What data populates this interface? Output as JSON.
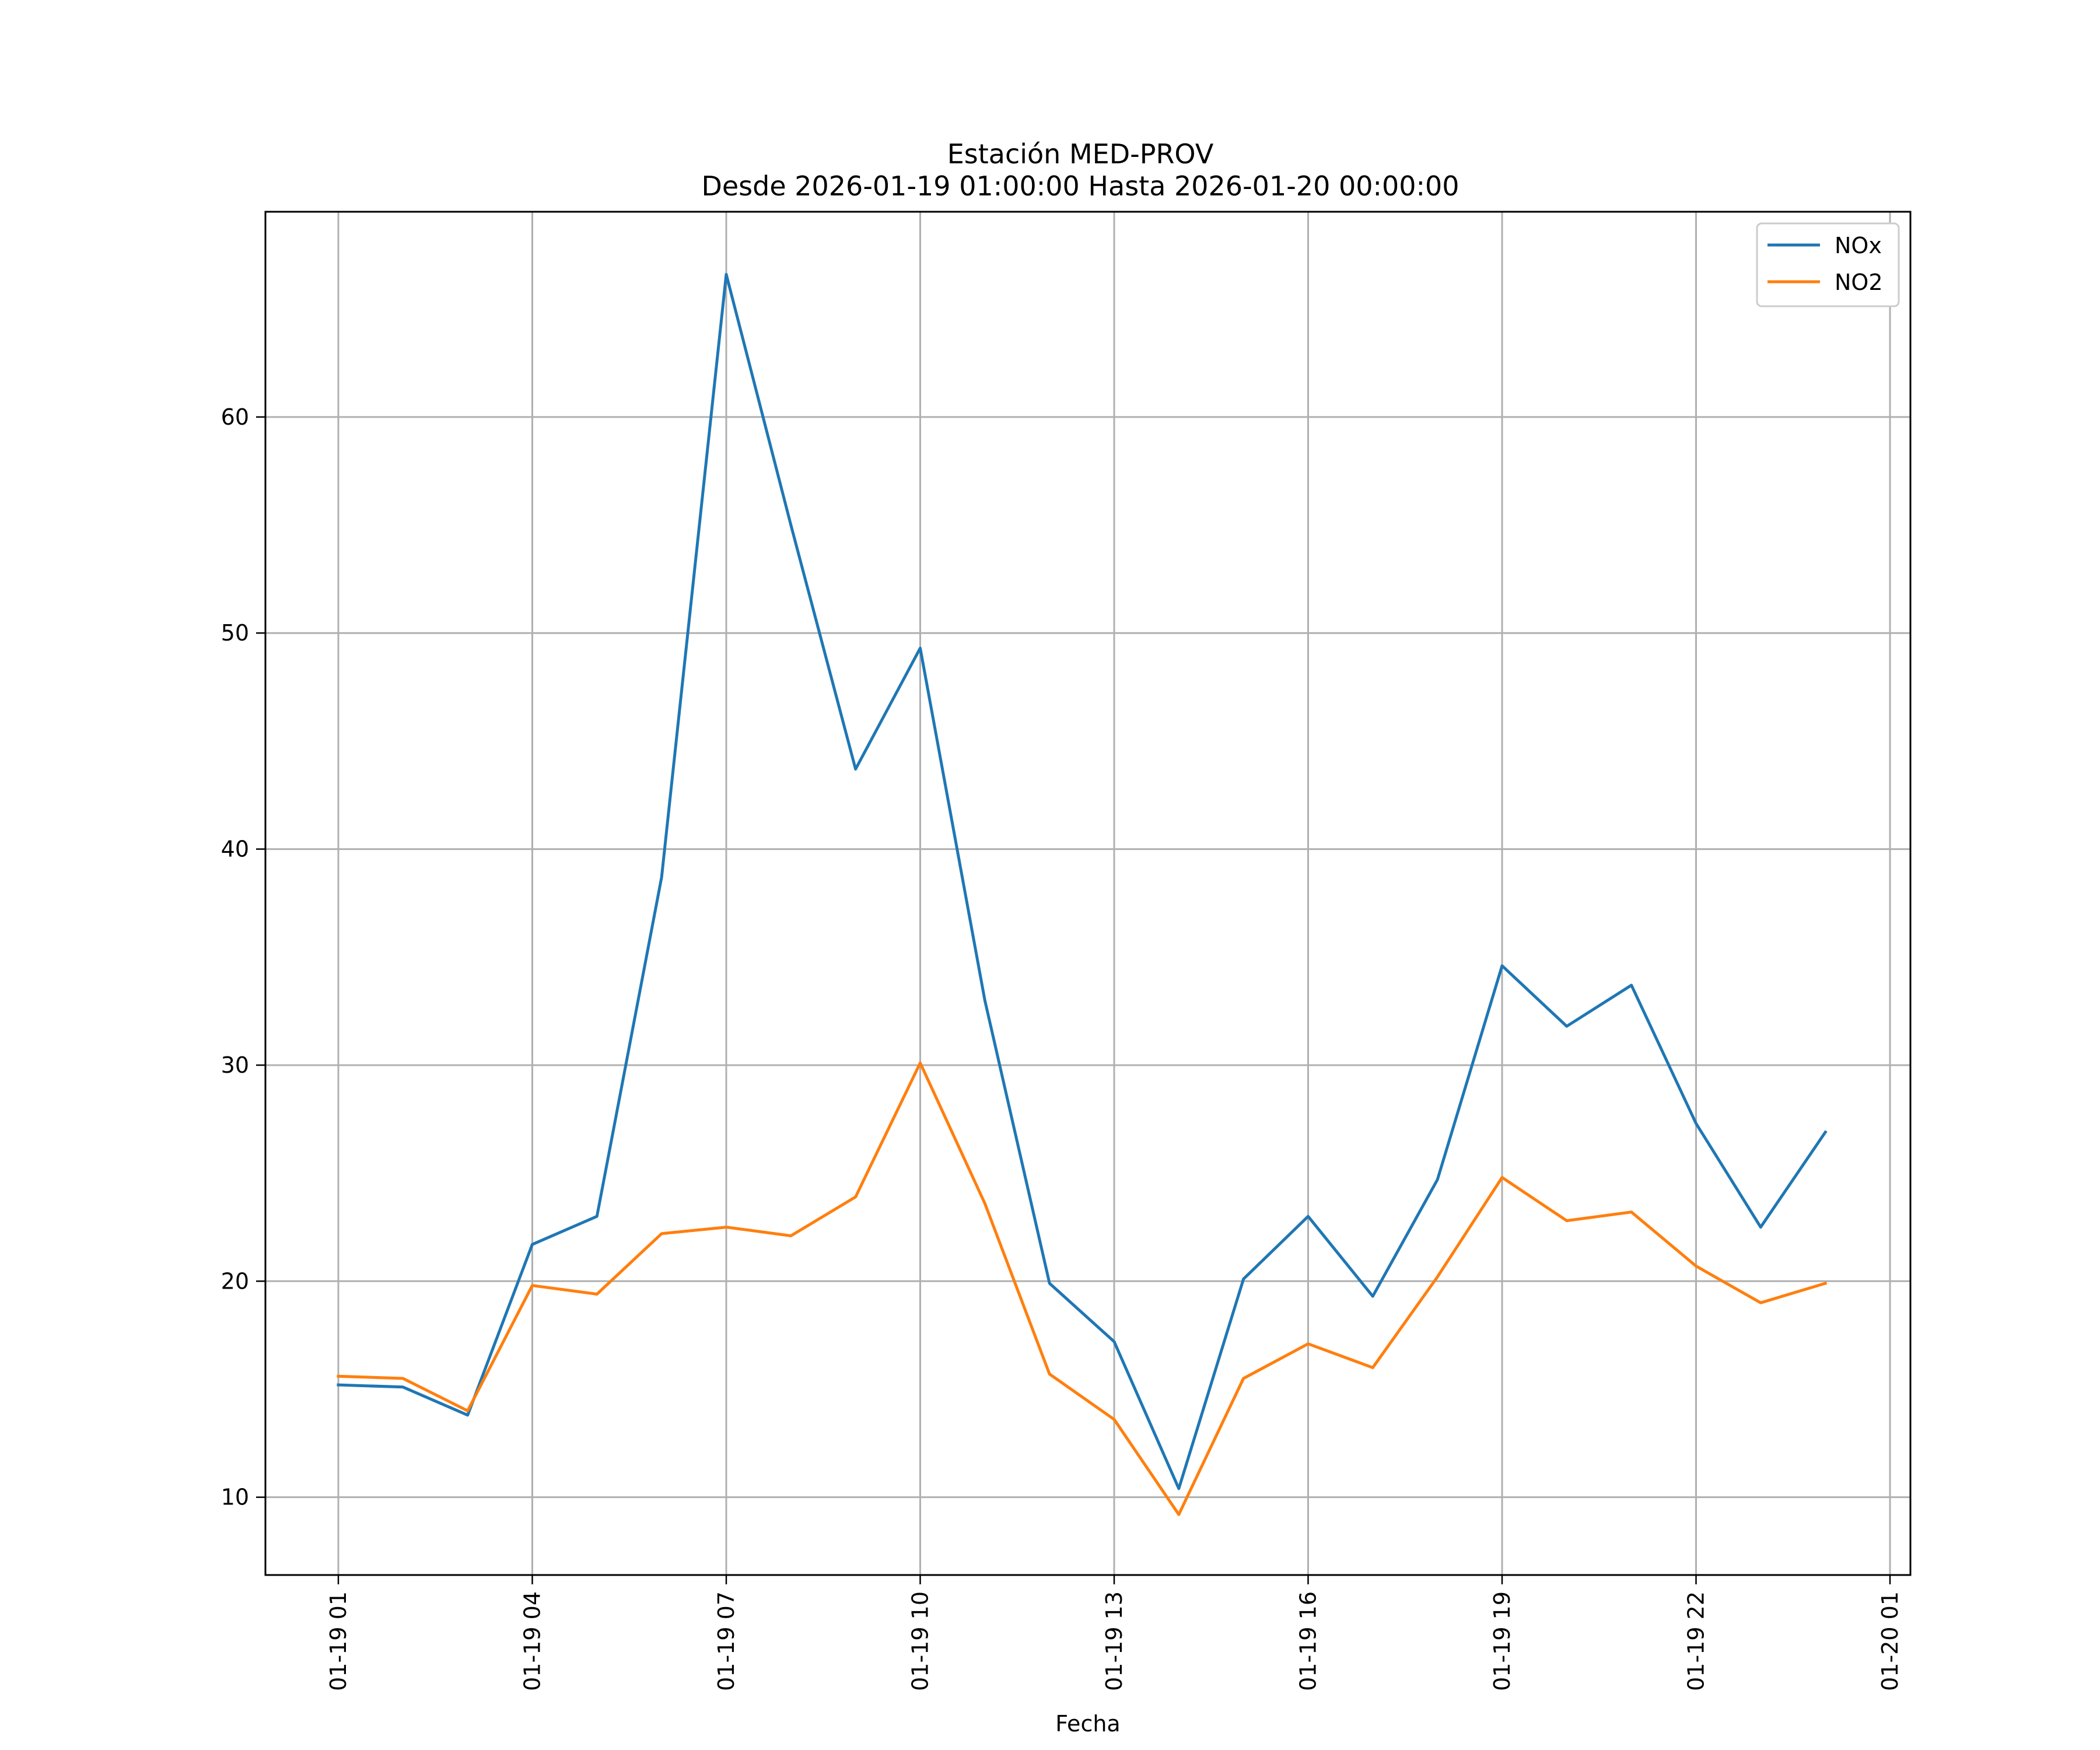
{
  "chart_data": {
    "type": "line",
    "title": "Estación MED-PROV",
    "subtitle": "Desde 2026-01-19 01:00:00 Hasta 2026-01-20 00:00:00",
    "xlabel": "Fecha",
    "ylabel": "",
    "x": [
      "2026-01-19 01:00",
      "2026-01-19 02:00",
      "2026-01-19 03:00",
      "2026-01-19 04:00",
      "2026-01-19 05:00",
      "2026-01-19 06:00",
      "2026-01-19 07:00",
      "2026-01-19 08:00",
      "2026-01-19 09:00",
      "2026-01-19 10:00",
      "2026-01-19 11:00",
      "2026-01-19 12:00",
      "2026-01-19 13:00",
      "2026-01-19 14:00",
      "2026-01-19 15:00",
      "2026-01-19 16:00",
      "2026-01-19 17:00",
      "2026-01-19 18:00",
      "2026-01-19 19:00",
      "2026-01-19 20:00",
      "2026-01-19 21:00",
      "2026-01-19 22:00",
      "2026-01-19 23:00",
      "2026-01-20 00:00"
    ],
    "series": [
      {
        "name": "NOx",
        "color": "#1f77b4",
        "values": [
          15.2,
          15.1,
          13.8,
          21.7,
          23.0,
          38.7,
          66.6,
          55.0,
          43.7,
          49.3,
          33.0,
          19.9,
          17.2,
          10.4,
          20.1,
          23.0,
          19.3,
          24.7,
          34.6,
          31.8,
          33.7,
          27.3,
          22.5,
          26.9
        ]
      },
      {
        "name": "NO2",
        "color": "#ff7f0e",
        "values": [
          15.6,
          15.5,
          14.0,
          19.8,
          19.4,
          22.2,
          22.5,
          22.1,
          23.9,
          30.1,
          23.6,
          15.7,
          13.6,
          9.2,
          15.5,
          17.1,
          16.0,
          20.2,
          24.8,
          22.8,
          23.2,
          20.7,
          19.0,
          19.9
        ]
      }
    ],
    "ylim": [
      6.4,
      69.5
    ],
    "yticks": [
      10,
      20,
      30,
      40,
      50,
      60
    ],
    "xticks": [
      "01-19 01",
      "01-19 04",
      "01-19 07",
      "01-19 10",
      "01-19 13",
      "01-19 16",
      "01-19 19",
      "01-19 22",
      "01-20 01"
    ],
    "grid": true,
    "legend_position": "top-right"
  }
}
